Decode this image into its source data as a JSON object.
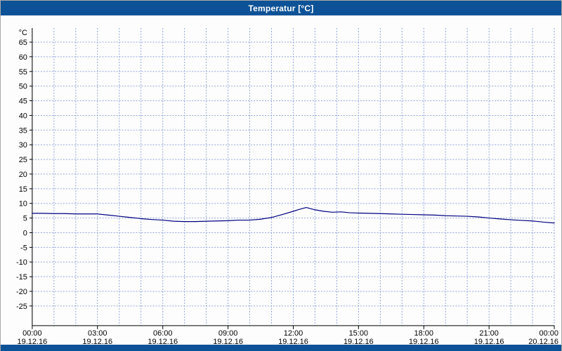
{
  "window": {
    "title": "Temperatur [°C]"
  },
  "colors": {
    "titlebar_bg": "#0d5296",
    "titlebar_text": "#ffffff",
    "plot_bg": "#fdfdfd",
    "grid": "#92a5d6",
    "axis": "#000000",
    "tick_text": "#000000",
    "series": "#000080"
  },
  "chart_data": {
    "type": "line",
    "title": "Temperatur [°C]",
    "xlabel": "",
    "ylabel": "°C",
    "xlim": [
      0,
      24
    ],
    "ylim": [
      -31.7,
      69.8
    ],
    "yticks": [
      65,
      60,
      55,
      50,
      45,
      40,
      35,
      30,
      25,
      20,
      15,
      10,
      5,
      0,
      -5,
      -10,
      -15,
      -20,
      -25
    ],
    "grid": "dotted blue grid, vertical line every hour, horizontal line every 5 °C",
    "legend_position": "none",
    "x_ticks": [
      {
        "hour": 0,
        "time": "00:00",
        "date": "19.12.16"
      },
      {
        "hour": 3,
        "time": "03:00",
        "date": "19.12.16"
      },
      {
        "hour": 6,
        "time": "06:00",
        "date": "19.12.16"
      },
      {
        "hour": 9,
        "time": "09:00",
        "date": "19.12.16"
      },
      {
        "hour": 12,
        "time": "12:00",
        "date": "19.12.16"
      },
      {
        "hour": 15,
        "time": "15:00",
        "date": "19.12.16"
      },
      {
        "hour": 18,
        "time": "18:00",
        "date": "19.12.16"
      },
      {
        "hour": 21,
        "time": "21:00",
        "date": "19.12.16"
      },
      {
        "hour": 24,
        "time": "00:00",
        "date": "20.12.16"
      }
    ],
    "series": [
      {
        "name": "Temperatur",
        "color": "#000080",
        "x": [
          0,
          0.5,
          1,
          1.5,
          2,
          2.5,
          3,
          3.5,
          4,
          4.5,
          5,
          5.5,
          6,
          6.5,
          7,
          7.5,
          8,
          8.5,
          9,
          9.5,
          10,
          10.5,
          11,
          11.5,
          12,
          12.3,
          12.6,
          13,
          13.4,
          13.8,
          14.2,
          14.6,
          15,
          15.5,
          16,
          16.5,
          17,
          17.5,
          18,
          18.5,
          19,
          19.5,
          20,
          20.5,
          21,
          21.5,
          22,
          22.5,
          23,
          23.5,
          24
        ],
        "y": [
          6.6,
          6.6,
          6.5,
          6.5,
          6.4,
          6.4,
          6.4,
          6.0,
          5.6,
          5.2,
          4.8,
          4.5,
          4.3,
          3.9,
          3.8,
          3.8,
          3.9,
          4.0,
          4.1,
          4.3,
          4.3,
          4.6,
          5.2,
          6.2,
          7.3,
          8.0,
          8.6,
          7.8,
          7.3,
          7.0,
          7.1,
          6.8,
          6.7,
          6.6,
          6.5,
          6.4,
          6.3,
          6.2,
          6.1,
          6.0,
          5.8,
          5.7,
          5.6,
          5.4,
          5.0,
          4.7,
          4.4,
          4.2,
          4.0,
          3.6,
          3.3
        ]
      }
    ]
  }
}
